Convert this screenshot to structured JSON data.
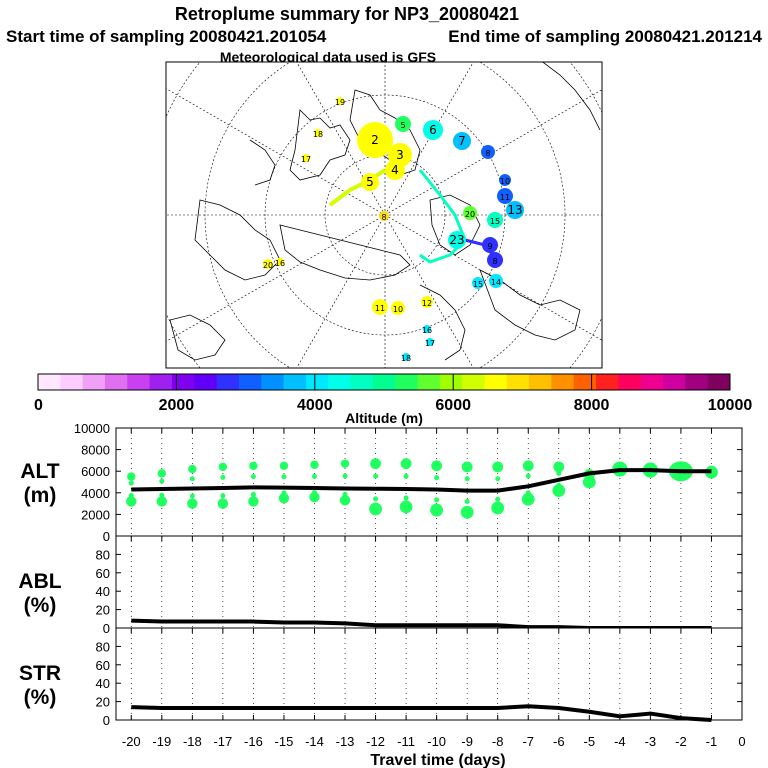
{
  "title": "Retroplume summary for NP3_20080421",
  "start_label": "Start time of sampling 20080421.201054",
  "end_label": "End time of sampling 20080421.201214",
  "met_label": "Meteorological data used is GFS",
  "colorbar": {
    "label": "Altitude (m)",
    "ticks": [
      "0",
      "2000",
      "4000",
      "6000",
      "8000",
      "10000"
    ],
    "colors": [
      "#ffe8ff",
      "#ffccff",
      "#f0a0f8",
      "#e070f0",
      "#c840f0",
      "#a020f0",
      "#8000f0",
      "#6000f8",
      "#3030ff",
      "#1060ff",
      "#0090ff",
      "#00c0ff",
      "#00e8ff",
      "#00ffe8",
      "#00ffc0",
      "#00ff90",
      "#20ff60",
      "#60ff30",
      "#a0ff00",
      "#d0ff00",
      "#ffff00",
      "#ffe000",
      "#ffc000",
      "#ff9000",
      "#ff6000",
      "#ff2020",
      "#ff0060",
      "#f00090",
      "#d000a0",
      "#a00080",
      "#800060"
    ]
  },
  "map_labels": [
    {
      "t": "2",
      "c": "#ffff00"
    },
    {
      "t": "3",
      "c": "#ffff00"
    },
    {
      "t": "4",
      "c": "#ffff00"
    },
    {
      "t": "5",
      "c": "#20ff60"
    },
    {
      "t": "5",
      "c": "#ffff00"
    },
    {
      "t": "6",
      "c": "#00ffe8"
    },
    {
      "t": "7",
      "c": "#00c0ff"
    },
    {
      "t": "8",
      "c": "#1060ff"
    },
    {
      "t": "9",
      "c": "#3030ff"
    },
    {
      "t": "10",
      "c": "#1060ff"
    },
    {
      "t": "11",
      "c": "#1060ff"
    },
    {
      "t": "13",
      "c": "#00c0ff"
    },
    {
      "t": "15",
      "c": "#00ffc0"
    },
    {
      "t": "20",
      "c": "#60ff30"
    },
    {
      "t": "23",
      "c": "#00ffe8"
    },
    {
      "t": "8",
      "c": "#3030ff"
    },
    {
      "t": "14",
      "c": "#00e8ff"
    },
    {
      "t": "15",
      "c": "#00e8ff"
    },
    {
      "t": "19",
      "c": "#ffff00"
    },
    {
      "t": "18",
      "c": "#ffff00"
    },
    {
      "t": "17",
      "c": "#ffff00"
    },
    {
      "t": "20",
      "c": "#ffff00"
    },
    {
      "t": "16",
      "c": "#ffff00"
    },
    {
      "t": "11",
      "c": "#ffff00"
    },
    {
      "t": "10",
      "c": "#ffff00"
    },
    {
      "t": "12",
      "c": "#ffff00"
    },
    {
      "t": "8",
      "c": "#ffe000"
    },
    {
      "t": "18",
      "c": "#00e8ff"
    },
    {
      "t": "17",
      "c": "#00e8ff"
    },
    {
      "t": "16",
      "c": "#00e8ff"
    }
  ],
  "chart_data": [
    {
      "type": "line",
      "name": "ALT",
      "ylabel": "ALT\n(m)",
      "ylabel_lines": [
        "ALT",
        "(m)"
      ],
      "ylim": [
        0,
        10000
      ],
      "yticks": [
        "0",
        "2000",
        "4000",
        "6000",
        "8000",
        "10000"
      ],
      "x": [
        -20,
        -19,
        -18,
        -17,
        -16,
        -15,
        -14,
        -13,
        -12,
        -11,
        -10,
        -9,
        -8,
        -7,
        -6,
        -5,
        -4,
        -3,
        -2,
        -1
      ],
      "values": [
        4300,
        4350,
        4400,
        4450,
        4500,
        4480,
        4450,
        4400,
        4380,
        4350,
        4300,
        4200,
        4200,
        4600,
        5200,
        5800,
        6100,
        6100,
        6000,
        6000
      ],
      "cluster_high": [
        5500,
        5800,
        6200,
        6400,
        6500,
        6500,
        6600,
        6700,
        6700,
        6700,
        6500,
        6400,
        6400,
        6500,
        6400,
        5700,
        6200,
        6100,
        6100,
        6000
      ],
      "cluster_low": [
        3200,
        3200,
        3000,
        3000,
        3200,
        3500,
        3600,
        3300,
        2500,
        2700,
        2400,
        2200,
        2600,
        3400,
        4200,
        5000,
        6200,
        6100,
        6000,
        5900
      ],
      "cluster_size": [
        1,
        1,
        1,
        1,
        1,
        1,
        1,
        1,
        2,
        2,
        2,
        2,
        2,
        2,
        2,
        2,
        3,
        3,
        4,
        2
      ]
    },
    {
      "type": "line",
      "name": "ABL",
      "ylabel_lines": [
        "ABL",
        "(%)"
      ],
      "ylim": [
        0,
        100
      ],
      "yticks": [
        "0",
        "20",
        "40",
        "60",
        "80"
      ],
      "x": [
        -20,
        -19,
        -18,
        -17,
        -16,
        -15,
        -14,
        -13,
        -12,
        -11,
        -10,
        -9,
        -8,
        -7,
        -6,
        -5,
        -4,
        -3,
        -2,
        -1
      ],
      "values": [
        8,
        7,
        7,
        7,
        7,
        6,
        6,
        5,
        3,
        3,
        3,
        3,
        3,
        1,
        1,
        0,
        0,
        0,
        0,
        0
      ]
    },
    {
      "type": "line",
      "name": "STR",
      "ylabel_lines": [
        "STR",
        "(%)"
      ],
      "ylim": [
        0,
        100
      ],
      "yticks": [
        "0",
        "20",
        "40",
        "60",
        "80"
      ],
      "x": [
        -20,
        -19,
        -18,
        -17,
        -16,
        -15,
        -14,
        -13,
        -12,
        -11,
        -10,
        -9,
        -8,
        -7,
        -6,
        -5,
        -4,
        -3,
        -2,
        -1
      ],
      "values": [
        14,
        13,
        13,
        13,
        13,
        13,
        13,
        13,
        13,
        13,
        13,
        13,
        13,
        15,
        13,
        9,
        4,
        7,
        2,
        0
      ]
    }
  ],
  "xaxis": {
    "label": "Travel time (days)",
    "ticks": [
      "-20",
      "-19",
      "-18",
      "-17",
      "-16",
      "-15",
      "-14",
      "-13",
      "-12",
      "-11",
      "-10",
      "-9",
      "-8",
      "-7",
      "-6",
      "-5",
      "-4",
      "-3",
      "-2",
      "-1",
      "0"
    ]
  }
}
